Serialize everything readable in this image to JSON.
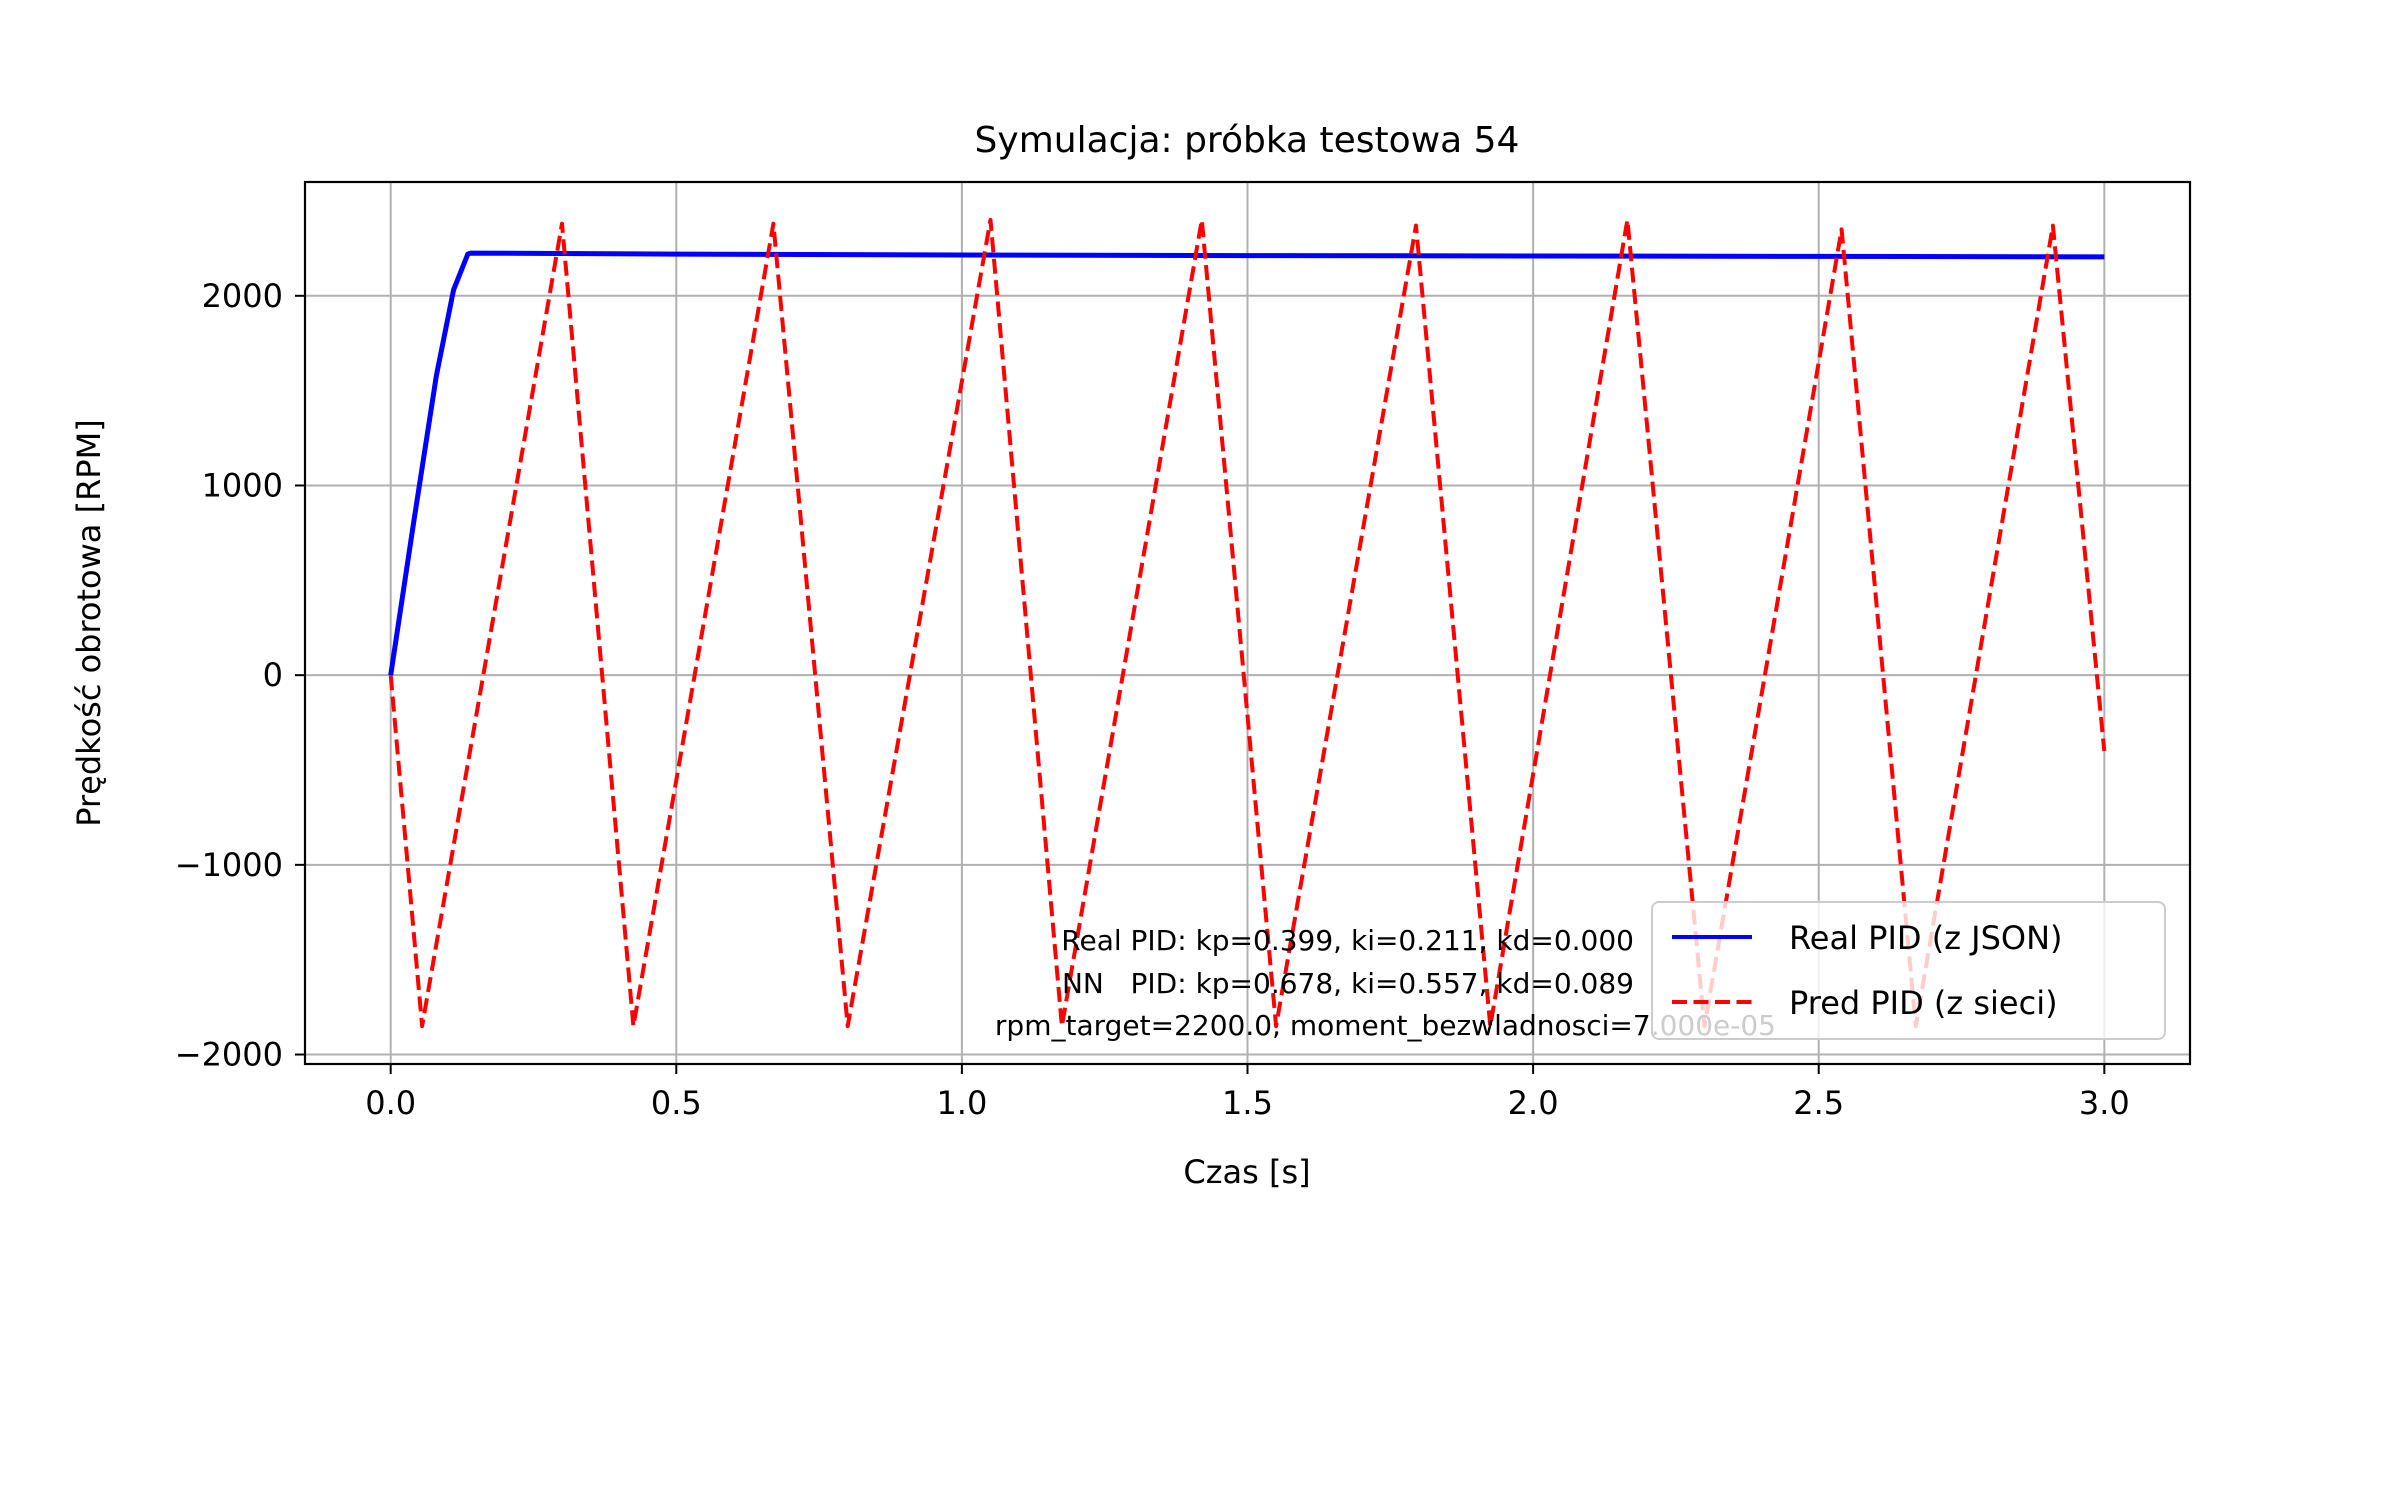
{
  "chart_data": {
    "type": "line",
    "title": "Symulacja: próbka testowa 54",
    "xlabel": "Czas [s]",
    "ylabel": "Prędkość obrotowa [RPM]",
    "xlim": [
      -0.15,
      3.15
    ],
    "ylim": [
      -2050,
      2600
    ],
    "x_ticks": [
      0.0,
      0.5,
      1.0,
      1.5,
      2.0,
      2.5,
      3.0
    ],
    "x_tick_labels": [
      "0.0",
      "0.5",
      "1.0",
      "1.5",
      "2.0",
      "2.5",
      "3.0"
    ],
    "y_ticks": [
      2000,
      1000,
      0,
      -1000,
      -2000
    ],
    "y_tick_labels": [
      "2000",
      "1000",
      "0",
      "−1000",
      "−2000"
    ],
    "grid": true,
    "legend_position": "lower right",
    "series": [
      {
        "name": "Real PID (z JSON)",
        "color": "#0000ff",
        "style": "solid",
        "x": [
          0.0,
          0.04,
          0.08,
          0.11,
          0.135,
          0.14,
          0.5,
          1.0,
          1.5,
          2.0,
          2.5,
          3.0
        ],
        "y": [
          0,
          800,
          1580,
          2030,
          2220,
          2225,
          2220,
          2215,
          2212,
          2210,
          2208,
          2205
        ]
      },
      {
        "name": "Pred PID (z sieci)",
        "color": "#ff0000",
        "style": "dashed",
        "x": [
          0.0,
          0.055,
          0.3,
          0.425,
          0.67,
          0.8,
          1.05,
          1.175,
          1.42,
          1.55,
          1.795,
          1.925,
          2.165,
          2.3,
          2.54,
          2.67,
          2.91,
          3.0
        ],
        "y": [
          0,
          -1850,
          2380,
          -1850,
          2380,
          -1850,
          2400,
          -1850,
          2400,
          -1850,
          2370,
          -1850,
          2400,
          -1850,
          2350,
          -1850,
          2370,
          -400
        ]
      }
    ],
    "annotation": [
      "Real PID: kp=0.399, ki=0.211, kd=0.000",
      "NN   PID: kp=0.678, ki=0.557, kd=0.089",
      "rpm_target=2200.0, moment_bezwladnosci=7.000e-05"
    ]
  }
}
